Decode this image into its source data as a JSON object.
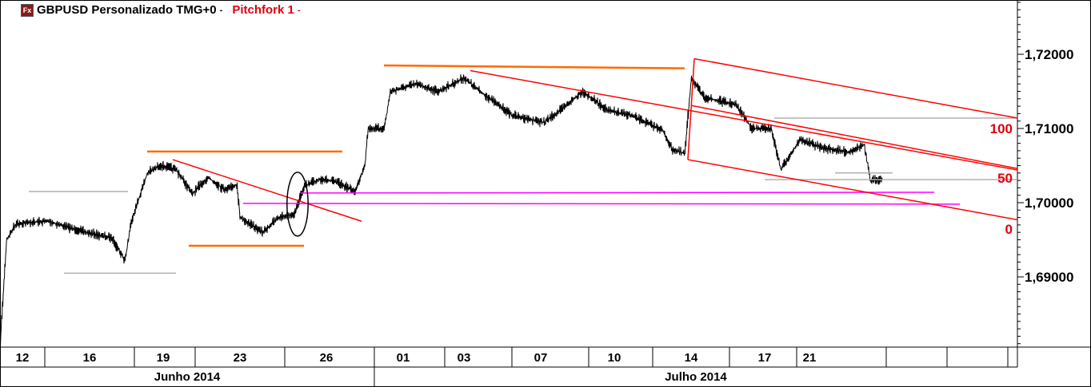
{
  "header": {
    "symbol_title": "GBPUSD Personalizado TMG+0",
    "sep1": "-",
    "study_title": "Pitchfork 1",
    "sep2": "-",
    "icon": "fx-logo-icon"
  },
  "colors": {
    "price": "#000000",
    "trend": "#ff0000",
    "support": "#ff6a00",
    "level": "#b0b0b0",
    "magenta": "#ff00ff",
    "pitchfork_label": "#e0000d"
  },
  "chart_data": {
    "type": "line",
    "title": "",
    "xlabel": "",
    "ylabel": "",
    "ylim": [
      1.6805,
      1.7275
    ],
    "yticks": [
      "1,72000",
      "1,71000",
      "1,70000",
      "1,69000"
    ],
    "ytick_values": [
      1.72,
      1.71,
      1.7,
      1.69
    ],
    "x_unit": "bar index",
    "xlim": [
      0,
      318
    ],
    "xticks": [
      {
        "label": "12",
        "bar": 7
      },
      {
        "label": "16",
        "bar": 28
      },
      {
        "label": "19",
        "bar": 51
      },
      {
        "label": "23",
        "bar": 75
      },
      {
        "label": "26",
        "bar": 102
      },
      {
        "label": "01",
        "bar": 126
      },
      {
        "label": "03",
        "bar": 145
      },
      {
        "label": "07",
        "bar": 169
      },
      {
        "label": "10",
        "bar": 192
      },
      {
        "label": "14",
        "bar": 216
      },
      {
        "label": "17",
        "bar": 239
      },
      {
        "label": "21",
        "bar": 253
      }
    ],
    "x_divisions": [
      14,
      42,
      61,
      89,
      117,
      139,
      160,
      184,
      204,
      228,
      249,
      277,
      296,
      315
    ],
    "months": [
      {
        "label": "Junho 2014",
        "from": 0,
        "to": 117
      },
      {
        "label": "Julho 2014",
        "to_end": true,
        "from": 117,
        "to": 318
      }
    ],
    "series": [
      {
        "points": [
          [
            0,
            1.681
          ],
          [
            2,
            1.695
          ],
          [
            5,
            1.6972
          ],
          [
            15,
            1.6975
          ],
          [
            25,
            1.6962
          ],
          [
            35,
            1.6952
          ],
          [
            39,
            1.6922
          ],
          [
            41,
            1.6975
          ],
          [
            46,
            1.704
          ],
          [
            50,
            1.705
          ],
          [
            55,
            1.7045
          ],
          [
            60,
            1.7012
          ],
          [
            65,
            1.7034
          ],
          [
            70,
            1.7018
          ],
          [
            74,
            1.7024
          ],
          [
            75,
            1.698
          ],
          [
            82,
            1.696
          ],
          [
            87,
            1.698
          ],
          [
            92,
            1.6985
          ],
          [
            95,
            1.7022
          ],
          [
            100,
            1.7032
          ],
          [
            105,
            1.7028
          ],
          [
            111,
            1.7015
          ],
          [
            114,
            1.7052
          ],
          [
            115,
            1.71
          ],
          [
            120,
            1.71
          ],
          [
            122,
            1.715
          ],
          [
            130,
            1.716
          ],
          [
            137,
            1.715
          ],
          [
            145,
            1.7168
          ],
          [
            150,
            1.715
          ],
          [
            160,
            1.7118
          ],
          [
            170,
            1.7108
          ],
          [
            175,
            1.7124
          ],
          [
            182,
            1.715
          ],
          [
            190,
            1.7124
          ],
          [
            197,
            1.7118
          ],
          [
            207,
            1.7098
          ],
          [
            210,
            1.7072
          ],
          [
            214,
            1.7066
          ],
          [
            216,
            1.7168
          ],
          [
            220,
            1.7142
          ],
          [
            230,
            1.7132
          ],
          [
            235,
            1.71
          ],
          [
            241,
            1.71
          ],
          [
            244,
            1.7045
          ],
          [
            250,
            1.7085
          ],
          [
            257,
            1.7074
          ],
          [
            265,
            1.7068
          ],
          [
            270,
            1.7078
          ],
          [
            272,
            1.703
          ],
          [
            276,
            1.7032
          ]
        ]
      }
    ],
    "drawings": {
      "gray_levels": [
        {
          "price": 1.7015,
          "from": 9,
          "to": 40
        },
        {
          "price": 1.6905,
          "from": 20,
          "to": 55
        },
        {
          "price": 1.7114,
          "from": 242,
          "to": 318
        },
        {
          "price": 1.7031,
          "from": 239,
          "to": 318
        },
        {
          "price": 1.704,
          "from": 261,
          "to": 279
        }
      ],
      "orange_levels": [
        {
          "p1": [
            46,
            1.7069
          ],
          "p2": [
            107,
            1.7069
          ]
        },
        {
          "p1": [
            59,
            1.6942
          ],
          "p2": [
            95,
            1.6942
          ]
        },
        {
          "p1": [
            120,
            1.7185
          ],
          "p2": [
            214,
            1.7181
          ]
        }
      ],
      "red_trendlines": [
        {
          "p1": [
            54,
            1.7058
          ],
          "p2": [
            113,
            1.6975
          ]
        },
        {
          "p1": [
            147,
            1.7178
          ],
          "p2": [
            318,
            1.7044
          ]
        }
      ],
      "magenta_lines": [
        {
          "p1": [
            94,
            1.7013
          ],
          "p2": [
            292,
            1.7014
          ]
        },
        {
          "p1": [
            76,
            1.6999
          ],
          "p2": [
            300,
            1.6998
          ]
        }
      ],
      "pitchfork": {
        "label_100": "100",
        "label_50": "50",
        "label_0": "0",
        "upper": {
          "p1": [
            217,
            1.7194
          ],
          "p2": [
            318,
            1.7114
          ]
        },
        "middle": {
          "p1": [
            216,
            1.7131
          ],
          "p2": [
            318,
            1.7046
          ]
        },
        "lower": {
          "p1": [
            215,
            1.7058
          ],
          "p2": [
            318,
            1.6977
          ]
        }
      },
      "ellipse": {
        "center": [
          93,
          1.6998
        ],
        "bars_radius": 3.3,
        "price_radius": 0.0043
      }
    }
  }
}
